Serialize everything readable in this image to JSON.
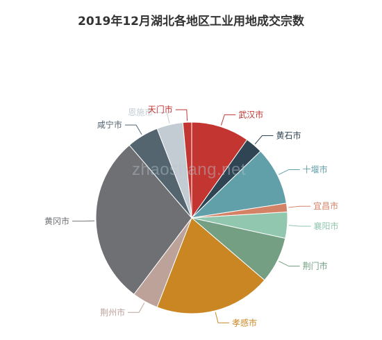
{
  "chart_data": {
    "type": "pie",
    "title": "2019年12月湖北各地区工业用地成交宗数",
    "series": [
      {
        "name": "武汉市",
        "value": 10.0,
        "color": "#c23531"
      },
      {
        "name": "黄石市",
        "value": 3.0,
        "color": "#2f4554"
      },
      {
        "name": "十堰市",
        "value": 10.0,
        "color": "#61a0a8"
      },
      {
        "name": "宜昌市",
        "value": 1.5,
        "color": "#d48265"
      },
      {
        "name": "襄阳市",
        "value": 4.5,
        "color": "#91c7ae"
      },
      {
        "name": "荆门市",
        "value": 8.0,
        "color": "#749f83"
      },
      {
        "name": "孝感市",
        "value": 20.0,
        "color": "#ca8622"
      },
      {
        "name": "荆州市",
        "value": 4.5,
        "color": "#bda29a"
      },
      {
        "name": "黄冈市",
        "value": 29.0,
        "color": "#6e7074"
      },
      {
        "name": "咸宁市",
        "value": 5.5,
        "color": "#546570"
      },
      {
        "name": "恩施市",
        "value": 4.5,
        "color": "#c4ccd3"
      },
      {
        "name": "天门市",
        "value": 1.5,
        "color": "#c23531"
      }
    ],
    "legend": "none",
    "label_position": "outside"
  },
  "watermark": "zhaoshang.net"
}
